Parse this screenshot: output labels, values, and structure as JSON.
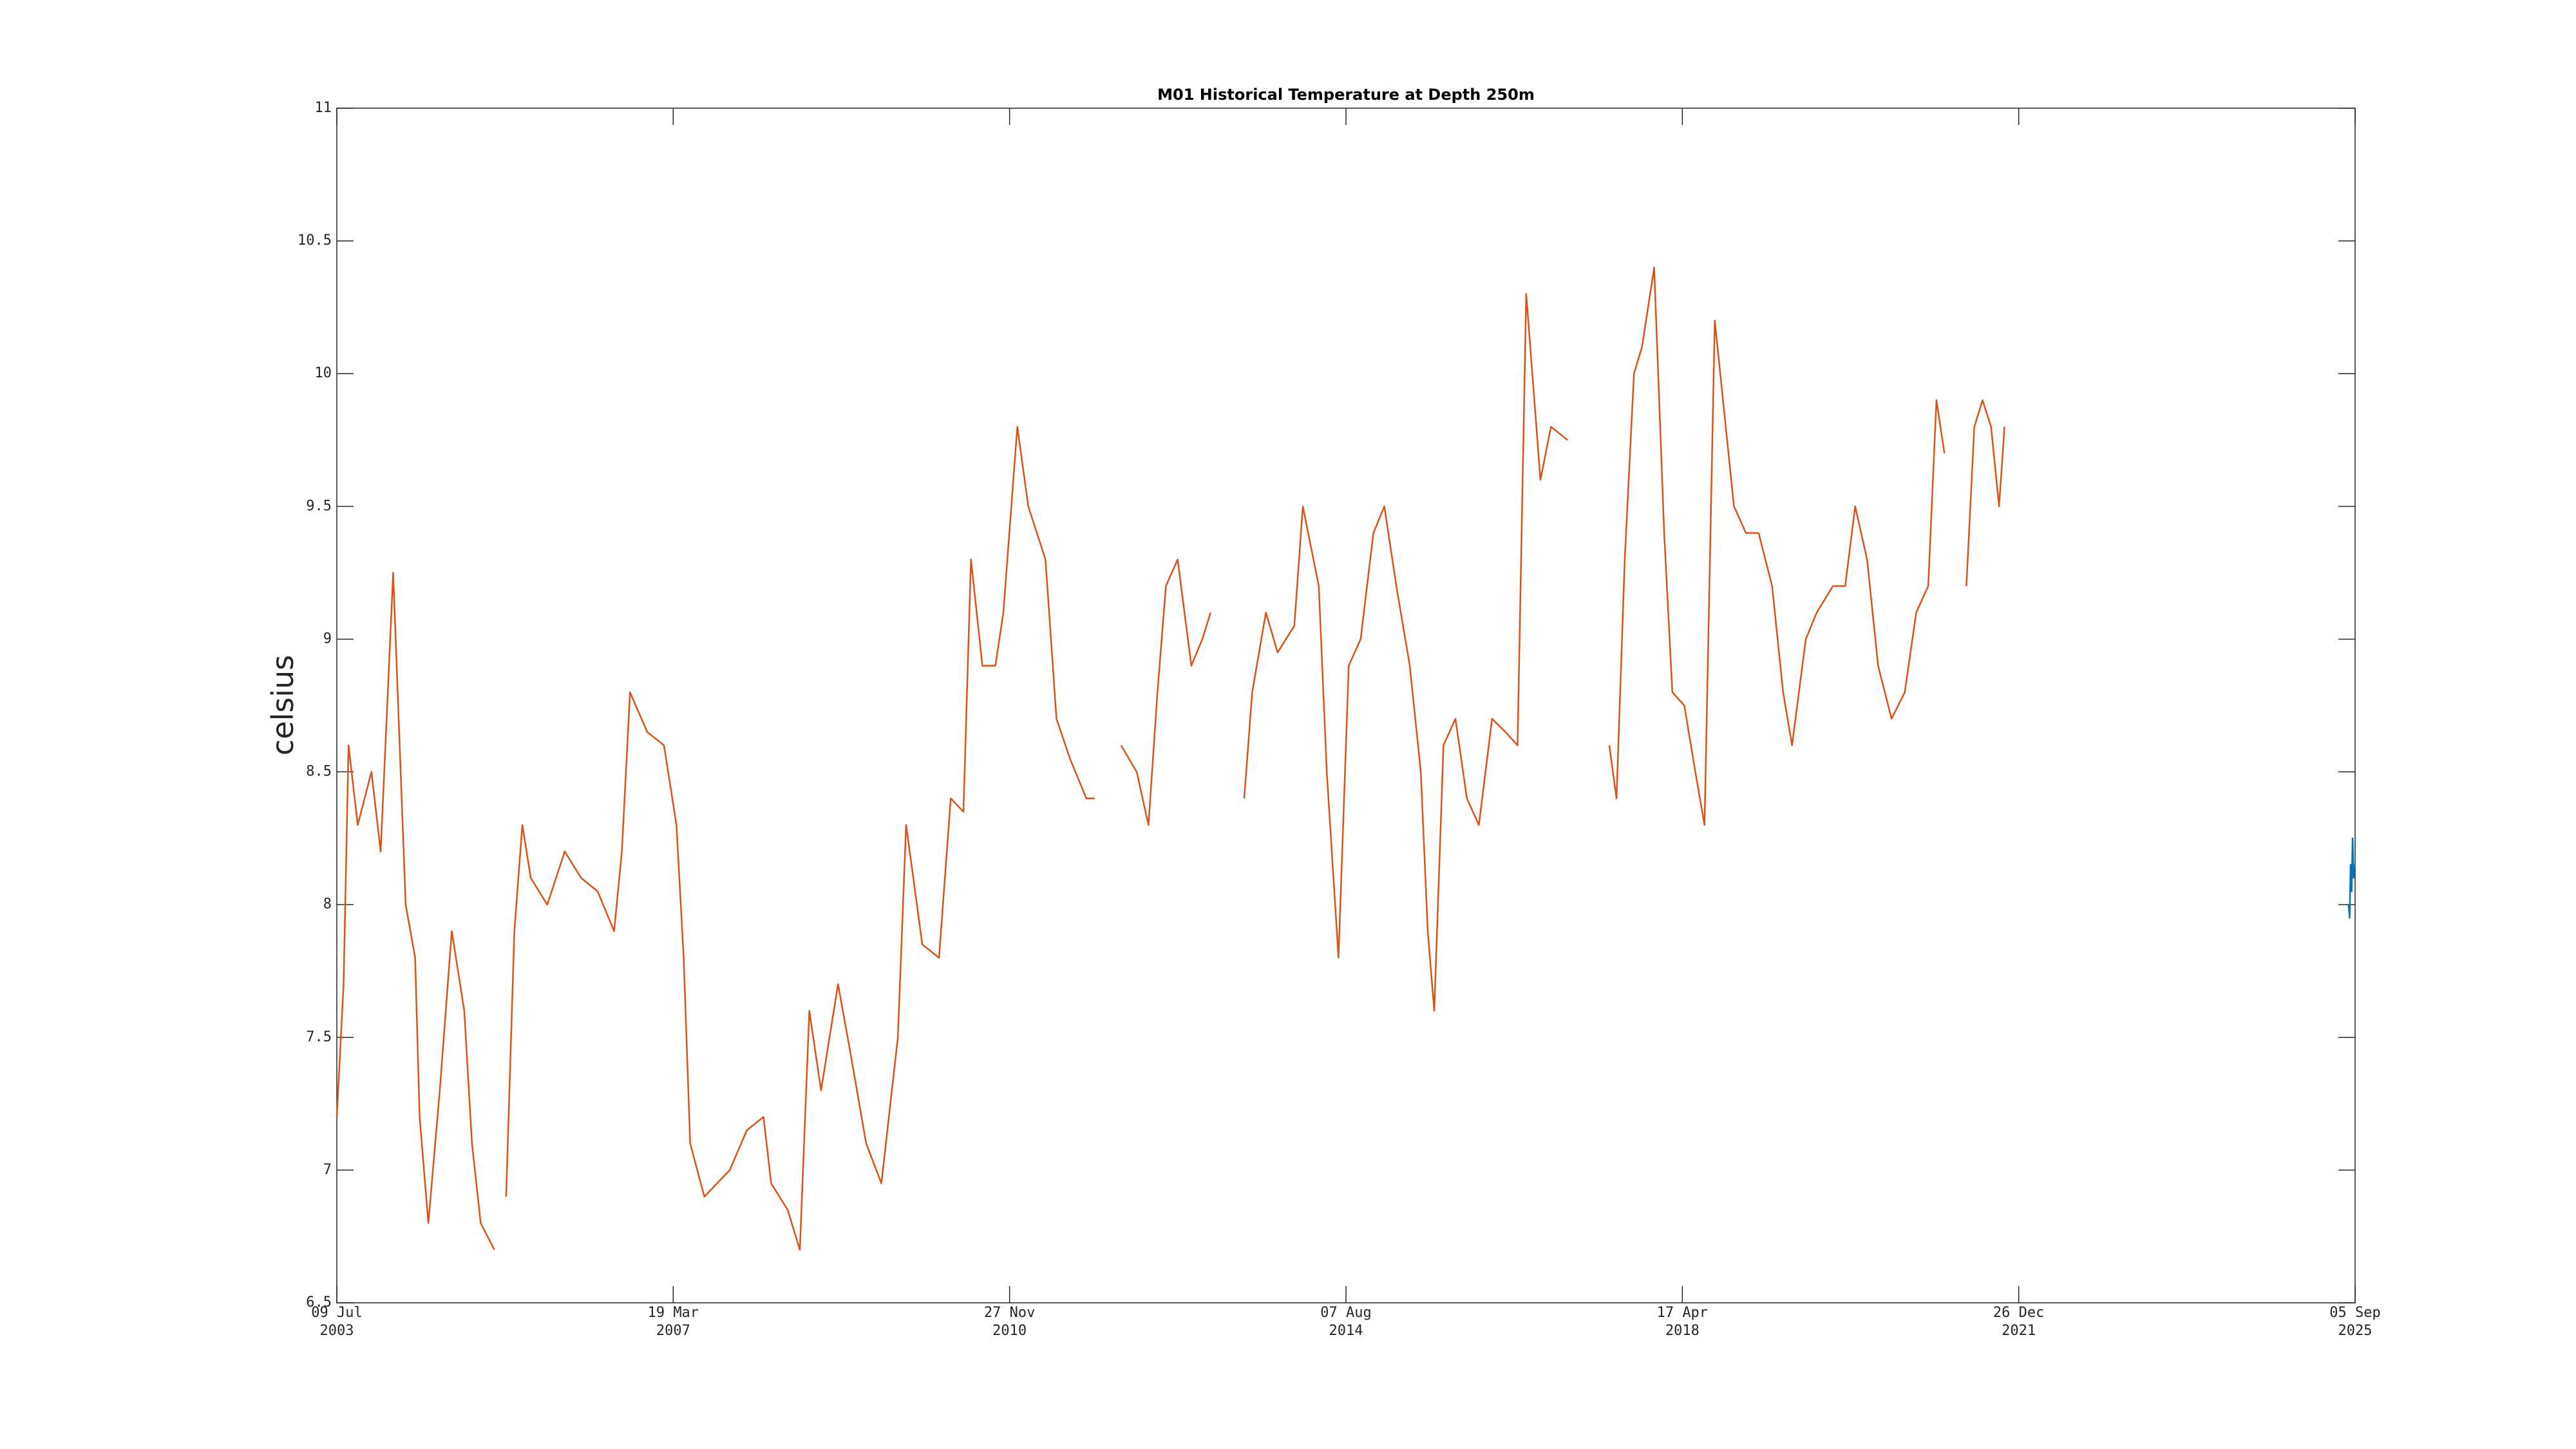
{
  "chart_data": {
    "type": "line",
    "title": "M01 Historical Temperature at Depth 250m",
    "y_label": "celsius",
    "xlim": [
      "2003-07-09",
      "2025-09-05"
    ],
    "xticks": [
      {
        "value": "2003-07-09",
        "label": [
          "09 Jul",
          "2003"
        ]
      },
      {
        "value": "2007-03-19",
        "label": [
          "19 Mar",
          "2007"
        ]
      },
      {
        "value": "2010-11-27",
        "label": [
          "27 Nov",
          "2010"
        ]
      },
      {
        "value": "2014-08-07",
        "label": [
          "07 Aug",
          "2014"
        ]
      },
      {
        "value": "2018-04-17",
        "label": [
          "17 Apr",
          "2018"
        ]
      },
      {
        "value": "2021-12-26",
        "label": [
          "26 Dec",
          "2021"
        ]
      },
      {
        "value": "2025-09-05",
        "label": [
          "05 Sep",
          "2025"
        ]
      }
    ],
    "ylim": [
      6.5,
      11
    ],
    "yticks": [
      6.5,
      7,
      7.5,
      8,
      8.5,
      9,
      9.5,
      10,
      10.5,
      11
    ],
    "grid": false,
    "series": [
      {
        "color": "#d95319",
        "x": [
          "2003-07-09",
          "2003-08-05",
          "2003-08-25",
          "2003-10-01",
          "2003-11-25",
          "2004-01-01",
          "2004-02-20",
          "2004-04-10",
          "2004-05-18",
          "2004-06-05",
          "2004-07-10",
          "2004-08-25",
          "2004-10-12",
          "2004-12-01",
          "2005-01-01",
          "2005-02-05",
          "2005-04-01",
          "2005-04-20",
          "2005-05-18",
          "2005-06-20",
          "2005-07-22",
          "2005-08-25",
          "2005-10-30",
          "2006-01-08",
          "2006-03-15",
          "2006-05-20",
          "2006-07-25",
          "2006-08-25",
          "2006-09-27",
          "2006-12-05",
          "2007-02-10",
          "2007-04-01",
          "2007-04-30",
          "2007-05-26",
          "2007-07-22",
          "2007-11-01",
          "2008-01-08",
          "2008-03-15",
          "2008-04-15",
          "2008-06-20",
          "2008-08-08",
          "2008-09-15",
          "2008-11-01",
          "2009-01-08",
          "2009-02-25",
          "2009-05-01",
          "2009-07-01",
          "2009-09-05",
          "2009-10-08",
          "2009-12-12",
          "2010-02-17",
          "2010-04-05",
          "2010-05-26",
          "2010-06-25",
          "2010-08-10",
          "2010-10-01",
          "2010-11-02",
          "2010-12-28",
          "2011-02-10",
          "2011-04-20",
          "2011-06-03",
          "2011-07-27",
          "2011-10-01",
          "2011-11-03",
          "2011-12-01",
          "2012-02-17",
          "2012-04-20",
          "2012-06-06",
          "2012-07-12",
          "2012-08-15",
          "2012-10-01",
          "2012-11-25",
          "2013-01-08",
          "2013-02-10",
          "2013-04-01",
          "2013-06-25",
          "2013-07-27",
          "2013-09-20",
          "2013-11-06",
          "2014-01-12",
          "2014-02-15",
          "2014-04-20",
          "2014-05-22",
          "2014-07-08",
          "2014-08-18",
          "2014-10-05",
          "2014-11-25",
          "2015-01-08",
          "2015-02-25",
          "2015-04-20",
          "2015-06-03",
          "2015-07-01",
          "2015-07-27",
          "2015-09-02",
          "2015-10-20",
          "2015-12-05",
          "2016-01-22",
          "2016-03-15",
          "2016-05-08",
          "2016-06-25",
          "2016-07-30",
          "2016-09-25",
          "2016-11-06",
          "2017-01-12",
          "2017-03-15",
          "2017-06-28",
          "2017-07-27",
          "2017-08-29",
          "2017-10-05",
          "2017-11-06",
          "2017-12-25",
          "2018-02-03",
          "2018-03-08",
          "2018-04-25",
          "2018-06-08",
          "2018-07-15",
          "2018-08-25",
          "2018-11-10",
          "2018-12-28",
          "2019-02-17",
          "2019-04-12",
          "2019-05-26",
          "2019-07-01",
          "2019-08-25",
          "2019-10-08",
          "2019-12-12",
          "2020-01-30",
          "2020-03-10",
          "2020-04-27",
          "2020-06-10",
          "2020-08-03",
          "2020-09-25",
          "2020-11-10",
          "2020-12-28",
          "2021-01-30",
          "2021-03-03",
          "2021-04-01",
          "2021-05-30",
          "2021-07-01",
          "2021-08-03",
          "2021-09-06",
          "2021-10-08",
          "2021-10-30"
        ],
        "values": [
          7.2,
          7.7,
          8.6,
          8.3,
          8.5,
          8.2,
          9.25,
          8.0,
          7.8,
          7.2,
          6.8,
          7.3,
          7.9,
          7.6,
          7.1,
          6.8,
          6.7,
          null,
          6.9,
          7.9,
          8.3,
          8.1,
          8.0,
          8.2,
          8.1,
          8.05,
          7.9,
          8.2,
          8.8,
          8.65,
          8.6,
          8.3,
          7.8,
          7.1,
          6.9,
          7.0,
          7.15,
          7.2,
          6.95,
          6.85,
          6.7,
          7.6,
          7.3,
          7.7,
          7.45,
          7.1,
          6.95,
          7.5,
          8.3,
          7.85,
          7.8,
          8.4,
          8.35,
          9.3,
          8.9,
          8.9,
          9.1,
          9.8,
          9.5,
          9.3,
          8.7,
          8.55,
          8.4,
          8.4,
          null,
          8.6,
          8.5,
          8.3,
          8.8,
          9.2,
          9.3,
          8.9,
          9.0,
          9.1,
          null,
          8.4,
          8.8,
          9.1,
          8.95,
          9.05,
          9.5,
          9.2,
          8.5,
          7.8,
          8.9,
          9.0,
          9.4,
          9.5,
          9.2,
          8.9,
          8.5,
          7.9,
          7.6,
          8.6,
          8.7,
          8.4,
          8.3,
          8.7,
          8.65,
          8.6,
          10.3,
          9.6,
          9.8,
          9.75,
          null,
          8.6,
          8.4,
          9.3,
          10.0,
          10.1,
          10.4,
          9.4,
          8.8,
          8.75,
          8.5,
          8.3,
          10.2,
          9.5,
          9.4,
          9.4,
          9.2,
          8.8,
          8.6,
          9.0,
          9.1,
          9.2,
          9.2,
          9.5,
          9.3,
          8.9,
          8.7,
          8.8,
          9.1,
          9.2,
          9.9,
          9.7,
          null,
          9.2,
          9.8,
          9.9,
          9.8,
          9.5,
          9.8
        ]
      },
      {
        "color": "#0072bd",
        "x": [
          "2025-08-10",
          "2025-08-14",
          "2025-08-18",
          "2025-08-22",
          "2025-08-26",
          "2025-08-30",
          "2025-09-03"
        ],
        "values": [
          8.0,
          7.95,
          8.15,
          8.05,
          8.25,
          8.1,
          8.15
        ]
      }
    ]
  }
}
